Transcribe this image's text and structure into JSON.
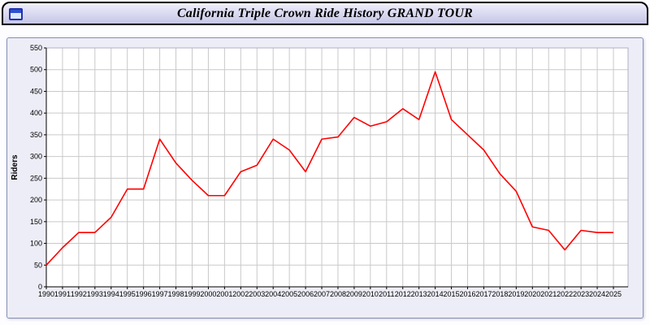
{
  "window": {
    "title": "California Triple Crown Ride History GRAND TOUR",
    "icon": "chart-window-icon"
  },
  "chart_data": {
    "type": "line",
    "title": "California Triple Crown Ride History GRAND TOUR",
    "xlabel": "",
    "ylabel": "Riders",
    "ylim": [
      0,
      550
    ],
    "ytick_interval": 50,
    "grid": true,
    "legend": "none",
    "line_color": "#ff0000",
    "plot_bg": "#ffffff",
    "grid_color": "#c9c9c9",
    "x": [
      1990,
      1991,
      1992,
      1993,
      1994,
      1995,
      1996,
      1997,
      1998,
      1999,
      2000,
      2001,
      2002,
      2003,
      2004,
      2005,
      2006,
      2007,
      2008,
      2009,
      2010,
      2011,
      2012,
      2013,
      2014,
      2015,
      2016,
      2017,
      2018,
      2019,
      2020,
      2021,
      2022,
      2023,
      2024,
      2025
    ],
    "values": [
      50,
      90,
      125,
      125,
      160,
      225,
      225,
      340,
      285,
      245,
      210,
      210,
      265,
      280,
      340,
      315,
      265,
      340,
      345,
      390,
      370,
      380,
      410,
      385,
      495,
      385,
      350,
      315,
      260,
      220,
      138,
      130,
      85,
      130,
      125,
      125
    ]
  }
}
